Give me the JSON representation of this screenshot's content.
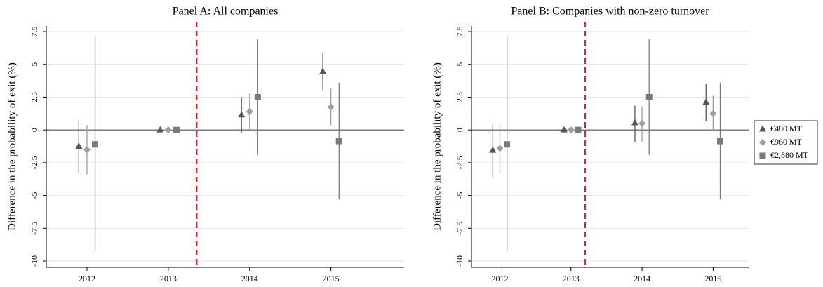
{
  "chart_data": [
    {
      "type": "errorbar",
      "title": "Panel A: All companies",
      "y_label": "Difference in the probability of exit (%)",
      "x": [
        2012,
        2013,
        2014,
        2015
      ],
      "xlim": [
        2011.5,
        2015.9
      ],
      "xticks": [
        2012,
        2013,
        2014,
        2015
      ],
      "ylim": [
        -10.48,
        7.93
      ],
      "yticks": [
        -10,
        -7.5,
        -5,
        -2.5,
        0,
        2.5,
        5,
        7.5
      ],
      "grid": true,
      "reference_line_x": 2013.35,
      "series": [
        {
          "marker": "triangle",
          "color": "#555555",
          "values": [
            -1.25,
            0,
            1.15,
            4.45
          ],
          "ci_low": [
            -3.3,
            0,
            -0.25,
            3.05
          ],
          "ci_high": [
            0.7,
            0,
            2.5,
            5.9
          ]
        },
        {
          "marker": "diamond",
          "color": "#9e9e9e",
          "values": [
            -1.5,
            0,
            1.4,
            1.75
          ],
          "ci_low": [
            -3.4,
            0,
            0,
            0.37
          ],
          "ci_high": [
            0.37,
            0,
            2.8,
            3.15
          ]
        },
        {
          "marker": "square",
          "color": "#7a7a7a",
          "values": [
            -1.1,
            0,
            2.5,
            -0.85
          ],
          "ci_low": [
            -9.2,
            0,
            -1.9,
            -5.3
          ],
          "ci_high": [
            7.1,
            0,
            6.9,
            3.6
          ]
        }
      ]
    },
    {
      "type": "errorbar",
      "title": "Panel B: Companies with non-zero turnover",
      "y_label": "Difference in the probability of exit (%)",
      "x": [
        2012,
        2013,
        2014,
        2015
      ],
      "xlim": [
        2011.6,
        2015.5
      ],
      "xticks": [
        2012,
        2013,
        2014,
        2015
      ],
      "ylim": [
        -10.48,
        7.93
      ],
      "yticks": [
        -10,
        -7.5,
        -5,
        -2.5,
        0,
        2.5,
        5,
        7.5
      ],
      "grid": true,
      "reference_line_x": 2013.2,
      "legend": "right",
      "series": [
        {
          "name": "€480 MT",
          "marker": "triangle",
          "color": "#555555",
          "values": [
            -1.55,
            0,
            0.55,
            2.1
          ],
          "ci_low": [
            -3.6,
            0,
            -0.95,
            0.65
          ],
          "ci_high": [
            0.5,
            0,
            1.85,
            3.5
          ]
        },
        {
          "name": "€960 MT",
          "marker": "diamond",
          "color": "#9e9e9e",
          "values": [
            -1.4,
            0,
            0.5,
            1.25
          ],
          "ci_low": [
            -3.35,
            0,
            -0.9,
            -0.05
          ],
          "ci_high": [
            0.45,
            0,
            1.8,
            2.6
          ]
        },
        {
          "name": "€2,880 MT",
          "marker": "square",
          "color": "#7a7a7a",
          "values": [
            -1.1,
            0,
            2.5,
            -0.85
          ],
          "ci_low": [
            -9.2,
            0,
            -1.9,
            -5.3
          ],
          "ci_high": [
            7.1,
            0,
            6.9,
            3.6
          ]
        }
      ]
    }
  ]
}
